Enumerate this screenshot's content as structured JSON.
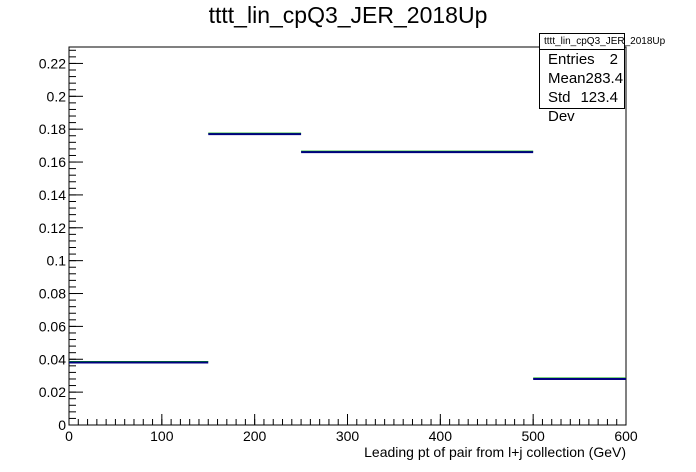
{
  "chart_data": {
    "type": "histogram",
    "title": "tttt_lin_cpQ3_JER_2018Up",
    "xlabel": "Leading pt of pair from l+j collection (GeV)",
    "ylabel": "",
    "xlim": [
      0,
      600
    ],
    "ylim": [
      0,
      0.23
    ],
    "x_ticks": [
      0,
      100,
      200,
      300,
      400,
      500,
      600
    ],
    "y_ticks": [
      0,
      0.02,
      0.04,
      0.06,
      0.08,
      0.1,
      0.12,
      0.14,
      0.16,
      0.18,
      0.2,
      0.22
    ],
    "grid": false,
    "legend": "none",
    "bins": [
      {
        "x_low": 0,
        "x_high": 150,
        "value": 0.038
      },
      {
        "x_low": 150,
        "x_high": 250,
        "value": 0.177
      },
      {
        "x_low": 250,
        "x_high": 500,
        "value": 0.166
      },
      {
        "x_low": 500,
        "x_high": 600,
        "value": 0.028
      }
    ],
    "line_color": "#000080",
    "error_color": "#00aa00",
    "stats_box": {
      "title": "tttt_lin_cpQ3_JER_2018Up",
      "rows": [
        {
          "label": "Entries",
          "value": "2"
        },
        {
          "label": "Mean",
          "value": "283.4"
        },
        {
          "label": "Std Dev",
          "value": "123.4"
        }
      ]
    }
  }
}
